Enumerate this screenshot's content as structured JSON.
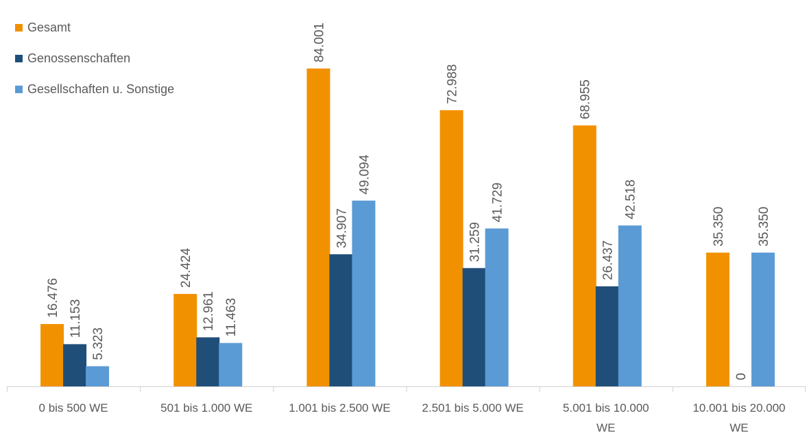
{
  "chart_data": {
    "type": "bar",
    "categories": [
      "0 bis 500 WE",
      "501 bis 1.000 WE",
      "1.001 bis 2.500 WE",
      "2.501 bis 5.000 WE",
      "5.001 bis 10.000 WE",
      "10.001 bis 20.000 WE"
    ],
    "series": [
      {
        "name": "Gesamt",
        "color": "#F29100",
        "values": [
          16476,
          24424,
          84001,
          72988,
          68955,
          35350
        ],
        "labels": [
          "16.476",
          "24.424",
          "84.001",
          "72.988",
          "68.955",
          "35.350"
        ]
      },
      {
        "name": "Genossenschaften",
        "color": "#1F4E79",
        "values": [
          11153,
          12961,
          34907,
          31259,
          26437,
          0
        ],
        "labels": [
          "11.153",
          "12.961",
          "34.907",
          "31.259",
          "26.437",
          "0"
        ]
      },
      {
        "name": "Gesellschaften u. Sonstige",
        "color": "#5B9BD5",
        "values": [
          5323,
          11463,
          49094,
          41729,
          42518,
          35350
        ],
        "labels": [
          "5.323",
          "11.463",
          "49.094",
          "41.729",
          "42.518",
          "35.350"
        ]
      }
    ],
    "ylim": [
      0,
      84001
    ],
    "grid": false,
    "legend": "top-left"
  }
}
